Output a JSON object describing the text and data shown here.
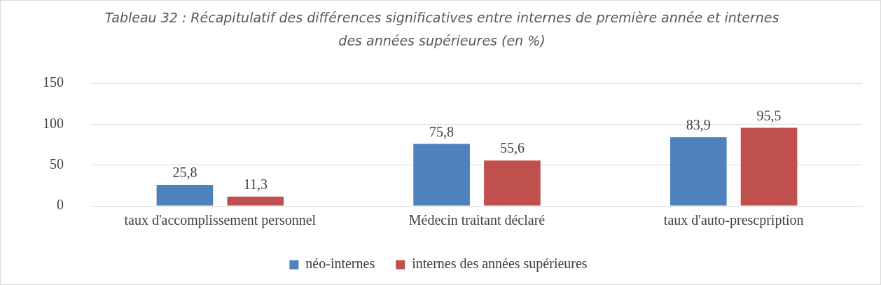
{
  "chart_data": {
    "type": "bar",
    "title": "Tableau 32 : Récapitulatif des différences significatives entre internes de première année et internes des années supérieures (en %)",
    "categories": [
      "taux d'accomplissement personnel",
      "Médecin traitant déclaré",
      "taux d'auto-prescpription"
    ],
    "series": [
      {
        "name": "néo-internes",
        "color": "#4f81bd",
        "values": [
          25.8,
          75.8,
          83.9
        ],
        "value_labels": [
          "25,8",
          "75,8",
          "83,9"
        ]
      },
      {
        "name": "internes des années supérieures",
        "color": "#c0504d",
        "values": [
          11.3,
          55.6,
          95.5
        ],
        "value_labels": [
          "11,3",
          "55,6",
          "95,5"
        ]
      }
    ],
    "ylim": [
      0,
      150
    ],
    "yticks": [
      0,
      50,
      100,
      150
    ],
    "grid": "y",
    "legend": "bottom"
  }
}
